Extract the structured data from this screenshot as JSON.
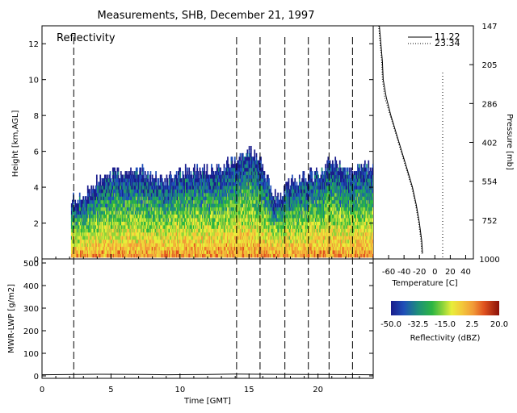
{
  "title": "Measurements, SHB, December 21, 1997",
  "chart_data": [
    {
      "type": "heatmap",
      "panel": "Reflectivity",
      "ylabel": "Height [km,AGL]",
      "y_ticks": [
        0,
        2,
        4,
        6,
        8,
        10,
        12
      ],
      "ylim": [
        0,
        13
      ],
      "xlim": [
        0,
        24
      ],
      "right_axis_label": "Pressure [mb]",
      "pressure_levels": [
        147,
        205,
        286,
        402,
        554,
        752,
        1000
      ],
      "event_lines_hours": [
        2.3,
        14.1,
        15.8,
        17.6,
        19.3,
        20.8,
        22.5
      ],
      "echo_tops_km": [
        [
          2.1,
          3.1
        ],
        [
          3.0,
          3.4
        ],
        [
          4.0,
          4.2
        ],
        [
          5.0,
          4.6
        ],
        [
          6.0,
          4.7
        ],
        [
          7.0,
          4.8
        ],
        [
          8.0,
          4.5
        ],
        [
          9.0,
          4.3
        ],
        [
          10.0,
          4.7
        ],
        [
          11.0,
          4.9
        ],
        [
          12.0,
          4.8
        ],
        [
          13.0,
          5.0
        ],
        [
          14.0,
          5.6
        ],
        [
          15.0,
          6.0
        ],
        [
          15.8,
          5.5
        ],
        [
          16.5,
          4.0
        ],
        [
          17.0,
          3.2
        ],
        [
          18.0,
          4.2
        ],
        [
          19.0,
          4.5
        ],
        [
          20.0,
          4.6
        ],
        [
          21.0,
          5.5
        ],
        [
          22.0,
          4.8
        ],
        [
          23.0,
          5.0
        ],
        [
          24.0,
          4.9
        ]
      ],
      "grid": false
    },
    {
      "type": "line",
      "panel": "Temperature profile",
      "xlabel": "Temperature [C]",
      "x_ticks": [
        -60,
        -40,
        -20,
        0,
        20,
        40
      ],
      "xlim": [
        -80,
        50
      ],
      "series": [
        {
          "name": "11.22",
          "points": [
            [
              -72,
              13
            ],
            [
              -70,
              12
            ],
            [
              -68,
              11
            ],
            [
              -67,
              10
            ],
            [
              -63,
              9
            ],
            [
              -57,
              8
            ],
            [
              -50,
              7
            ],
            [
              -43,
              6
            ],
            [
              -36,
              5
            ],
            [
              -29,
              4
            ],
            [
              -24,
              3
            ],
            [
              -20,
              2
            ],
            [
              -17,
              1
            ],
            [
              -16,
              0.3
            ]
          ]
        },
        {
          "name": "23.34",
          "points": [
            [
              -73,
              13
            ],
            [
              -71,
              12
            ],
            [
              -69,
              11
            ],
            [
              -68,
              10
            ],
            [
              -65,
              9
            ],
            [
              -58,
              8
            ],
            [
              -51,
              7
            ],
            [
              -44,
              6
            ],
            [
              -37,
              5
            ],
            [
              -30,
              4
            ],
            [
              -25,
              3
            ],
            [
              -21,
              2
            ],
            [
              -18,
              1
            ],
            [
              -17,
              0.3
            ]
          ]
        }
      ]
    },
    {
      "type": "line",
      "panel": "MWR-LWP",
      "ylabel": "MWR-LWP [g/m2]",
      "xlabel": "Time [GMT]",
      "x_ticks": [
        0,
        5,
        10,
        15,
        20
      ],
      "y_ticks": [
        0,
        100,
        200,
        300,
        400,
        500
      ],
      "xlim": [
        0,
        24
      ],
      "ylim": [
        0,
        500
      ],
      "series": [
        {
          "name": "LWP",
          "points": [
            [
              0,
              5
            ],
            [
              4,
              7
            ],
            [
              7.5,
              6
            ],
            [
              9,
              5
            ],
            [
              12,
              6
            ],
            [
              14,
              8
            ],
            [
              16,
              7
            ],
            [
              20,
              6
            ],
            [
              24,
              5
            ]
          ]
        }
      ]
    },
    {
      "type": "colorbar",
      "label": "Reflectivity (dBZ)",
      "tick_labels": [
        "-50.0",
        "-32.5",
        "-15.0",
        "2.5",
        "20.0"
      ],
      "range": [
        -50,
        20
      ]
    }
  ]
}
